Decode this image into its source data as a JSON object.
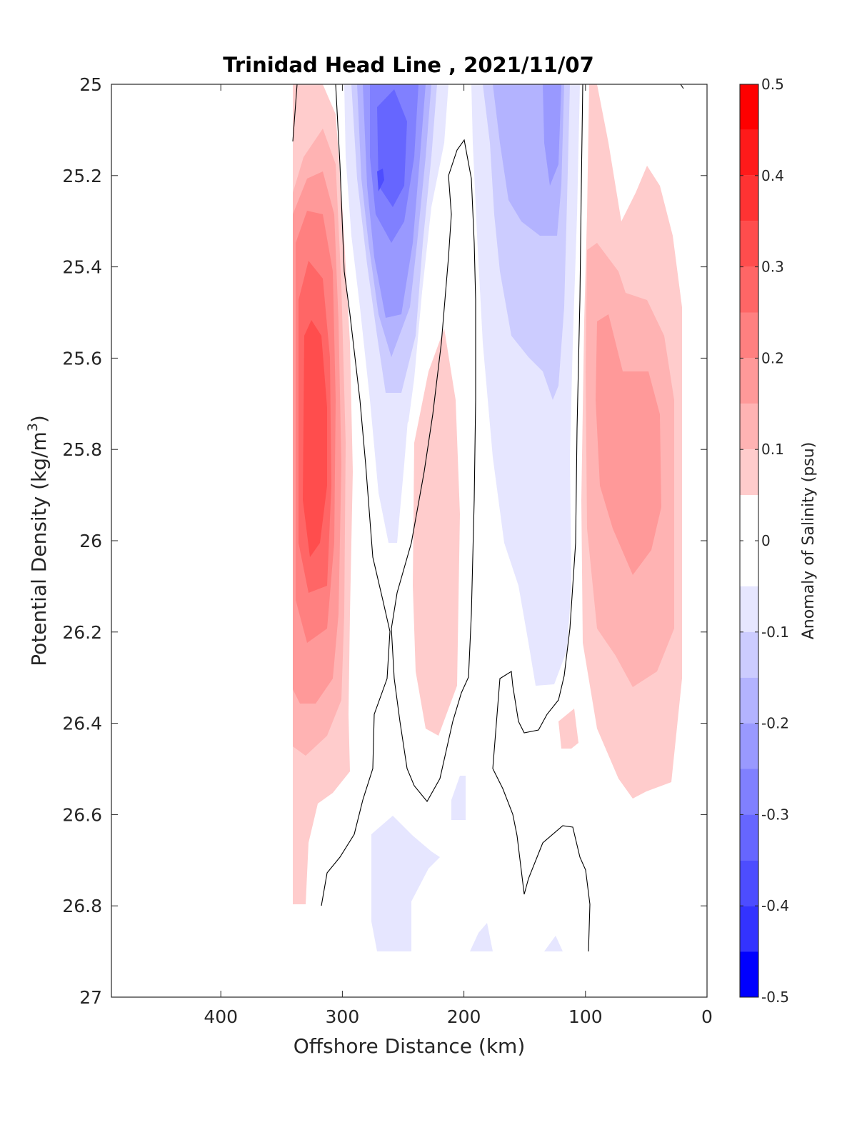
{
  "chart_data": {
    "type": "heatmap",
    "subtype": "filled-contour",
    "title": "Trinidad Head Line , 2021/11/07",
    "xlabel": "Offshore Distance (km)",
    "ylabel_main": "Potential Density (kg/m",
    "ylabel_sup": "3",
    "ylabel_close": ")",
    "xlim": [
      490,
      0
    ],
    "x_reversed": true,
    "ylim": [
      25,
      27
    ],
    "y_reversed": true,
    "x_ticks": [
      400,
      300,
      200,
      100,
      0
    ],
    "x_tick_labels": [
      "400",
      "300",
      "200",
      "100",
      "0"
    ],
    "y_ticks": [
      25,
      25.2,
      25.4,
      25.6,
      25.8,
      26,
      26.2,
      26.4,
      26.6,
      26.8,
      27
    ],
    "y_tick_labels": [
      "25",
      "25.2",
      "25.4",
      "25.6",
      "25.8",
      "26",
      "26.2",
      "26.4",
      "26.6",
      "26.8",
      "27"
    ],
    "colorbar": {
      "label": "Anomaly of Salinity (psu)",
      "range": [
        -0.5,
        0.5
      ],
      "ticks": [
        0.5,
        0.4,
        0.3,
        0.2,
        0.1,
        0,
        -0.1,
        -0.2,
        -0.3,
        -0.4,
        -0.5
      ],
      "tick_labels": [
        "0.5",
        "0.4",
        "0.3",
        "0.2",
        "0.1",
        "0",
        "-0.1",
        "-0.2",
        "-0.3",
        "-0.4",
        "-0.5"
      ],
      "levels": [
        {
          "from": 0.45,
          "to": 0.5,
          "color": "#ff0000"
        },
        {
          "from": 0.4,
          "to": 0.45,
          "color": "#ff1a1a"
        },
        {
          "from": 0.35,
          "to": 0.4,
          "color": "#ff3333"
        },
        {
          "from": 0.3,
          "to": 0.35,
          "color": "#ff4d4d"
        },
        {
          "from": 0.25,
          "to": 0.3,
          "color": "#ff6666"
        },
        {
          "from": 0.2,
          "to": 0.25,
          "color": "#ff8080"
        },
        {
          "from": 0.15,
          "to": 0.2,
          "color": "#ff9999"
        },
        {
          "from": 0.1,
          "to": 0.15,
          "color": "#ffb3b3"
        },
        {
          "from": 0.05,
          "to": 0.1,
          "color": "#ffcccc"
        },
        {
          "from": 0.0,
          "to": 0.05,
          "color": "#ffe6e6"
        },
        {
          "from": -0.05,
          "to": 0.05,
          "color": "#ffffff"
        },
        {
          "from": -0.1,
          "to": -0.05,
          "color": "#e6e6ff"
        },
        {
          "from": -0.15,
          "to": -0.1,
          "color": "#ccccff"
        },
        {
          "from": -0.2,
          "to": -0.15,
          "color": "#b3b3ff"
        },
        {
          "from": -0.25,
          "to": -0.2,
          "color": "#9999ff"
        },
        {
          "from": -0.3,
          "to": -0.25,
          "color": "#8080ff"
        },
        {
          "from": -0.35,
          "to": -0.3,
          "color": "#6666ff"
        },
        {
          "from": -0.4,
          "to": -0.35,
          "color": "#4d4dff"
        },
        {
          "from": -0.45,
          "to": -0.4,
          "color": "#3333ff"
        },
        {
          "from": -0.5,
          "to": -0.45,
          "color": "#0000ff"
        }
      ]
    },
    "features": [
      {
        "name": "salty-core-offshore",
        "center_x_km": 325,
        "center_y": 25.75,
        "peak_anomaly": 0.3
      },
      {
        "name": "fresh-core-central",
        "center_x_km": 265,
        "center_y": 25.22,
        "peak_anomaly": -0.35
      },
      {
        "name": "fresh-band-inshore",
        "center_x_km": 130,
        "center_y": 25.3,
        "peak_anomaly": -0.2
      },
      {
        "name": "salty-lobe-central",
        "center_x_km": 225,
        "center_y": 25.95,
        "peak_anomaly": 0.1
      },
      {
        "name": "salty-lobe-coastal",
        "center_x_km": 60,
        "center_y": 25.85,
        "peak_anomaly": 0.15
      },
      {
        "name": "fresh-patch-deep",
        "center_x_km": 245,
        "center_y": 26.8,
        "peak_anomaly": -0.1
      }
    ],
    "grid": false
  }
}
